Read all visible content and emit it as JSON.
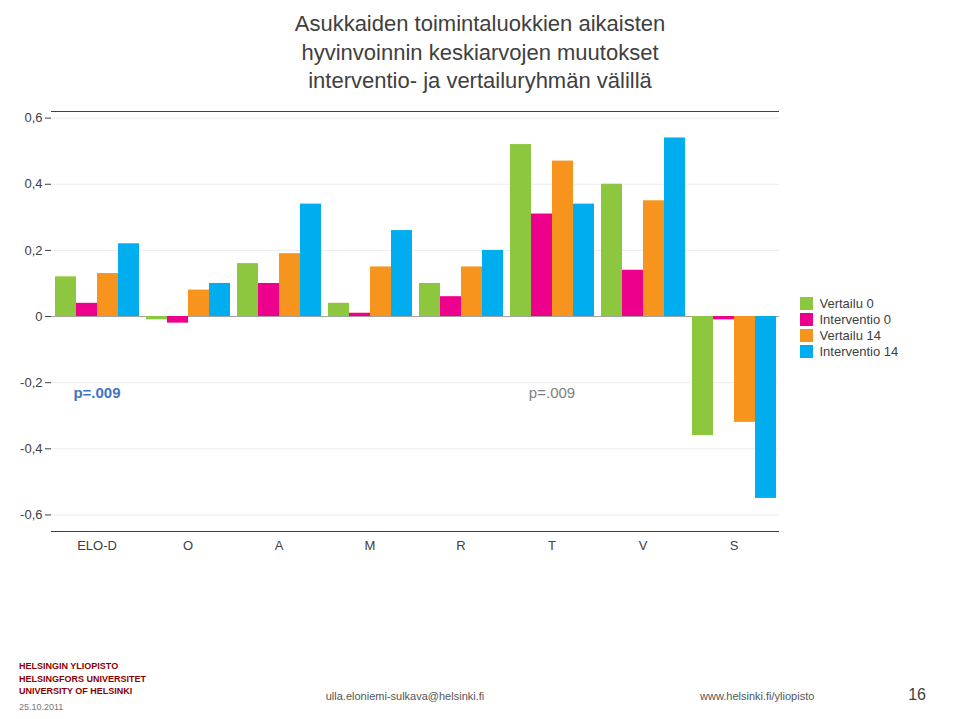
{
  "chart_data": {
    "type": "bar",
    "title": "Asukkaiden toimintaluokkien aikaisten\nhyvinvoinnin keskiarvojen muutokset\ninterventio- ja vertailuryhmän välillä",
    "categories": [
      "ELO-D",
      "O",
      "A",
      "M",
      "R",
      "T",
      "V",
      "S"
    ],
    "series": [
      {
        "name": "Vertailu 0",
        "color": "#8DC63F",
        "values": [
          0.12,
          -0.01,
          0.16,
          0.04,
          0.1,
          0.52,
          0.4,
          -0.36
        ]
      },
      {
        "name": "Interventio 0",
        "color": "#EC008C",
        "values": [
          0.04,
          -0.02,
          0.1,
          0.01,
          0.06,
          0.31,
          0.14,
          -0.01
        ]
      },
      {
        "name": "Vertailu 14",
        "color": "#F7941D",
        "values": [
          0.13,
          0.08,
          0.19,
          0.15,
          0.15,
          0.47,
          0.35,
          -0.32
        ]
      },
      {
        "name": "Interventio 14",
        "color": "#00AEEF",
        "values": [
          0.22,
          0.1,
          0.34,
          0.26,
          0.2,
          0.34,
          0.54,
          -0.55
        ]
      }
    ],
    "ylim": [
      -0.65,
      0.62
    ],
    "yticks": [
      {
        "value": -0.6,
        "label": "-0,6"
      },
      {
        "value": -0.4,
        "label": "-0,4"
      },
      {
        "value": -0.2,
        "label": "-0,2"
      },
      0,
      {
        "value": 0.2,
        "label": "0,2"
      },
      {
        "value": 0.4,
        "label": "0,4"
      },
      {
        "value": 0.6,
        "label": "0,6"
      }
    ],
    "grid": true,
    "legend": "right",
    "annotations": [
      {
        "text": "p=.009",
        "category": "ELO-D",
        "y": -0.215,
        "color": "#4472C4"
      },
      {
        "text": "p=.009",
        "category": "T",
        "y": -0.215,
        "color": "#7F7F7F"
      }
    ],
    "footer": [
      "HELSINGIN YLIOPISTO\nHELSINGFORS UNIVERSITET\nUNIVERSITY OF HELSINKI",
      "ulla.eloniemi-sulkava@helsinki.fi",
      "www.helsinki.fi/yliopisto",
      "16",
      "25.10.2011"
    ]
  }
}
